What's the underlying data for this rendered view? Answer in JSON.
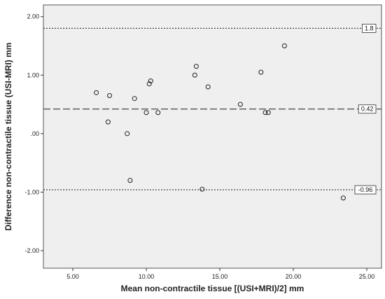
{
  "chart_data": {
    "type": "scatter",
    "xlabel": "Mean non-contractile tissue [(USI+MRI)/2] mm",
    "ylabel": "Difference non-contractile tissue (USI-MRI) mm",
    "xlim": [
      3.0,
      26.0
    ],
    "ylim": [
      -2.3,
      2.2
    ],
    "x_ticks": [
      "5.00",
      "10.00",
      "15.00",
      "20.00",
      "25.00"
    ],
    "x_tick_values": [
      5,
      10,
      15,
      20,
      25
    ],
    "y_ticks": [
      "2.00",
      "1.00",
      ".00",
      "-1.00",
      "-2.00"
    ],
    "y_tick_values": [
      2,
      1,
      0,
      -1,
      -2
    ],
    "grid": false,
    "plot_background": "#efefef",
    "marker_color": "#222222",
    "reference_lines": [
      {
        "name": "upper-limit",
        "value": 1.8,
        "label": "1.8",
        "style": "dotted"
      },
      {
        "name": "mean-difference",
        "value": 0.42,
        "label": "0.42",
        "style": "dashed"
      },
      {
        "name": "lower-limit",
        "value": -0.96,
        "label": "-0.96",
        "style": "dotted"
      }
    ],
    "points": [
      {
        "x": 6.6,
        "y": 0.7
      },
      {
        "x": 7.4,
        "y": 0.2
      },
      {
        "x": 7.5,
        "y": 0.65
      },
      {
        "x": 8.7,
        "y": 0.0
      },
      {
        "x": 8.9,
        "y": -0.8
      },
      {
        "x": 9.2,
        "y": 0.6
      },
      {
        "x": 10.0,
        "y": 0.36
      },
      {
        "x": 10.2,
        "y": 0.85
      },
      {
        "x": 10.3,
        "y": 0.9
      },
      {
        "x": 10.8,
        "y": 0.36
      },
      {
        "x": 13.3,
        "y": 1.0
      },
      {
        "x": 13.4,
        "y": 1.15
      },
      {
        "x": 13.8,
        "y": -0.95
      },
      {
        "x": 14.2,
        "y": 0.8
      },
      {
        "x": 16.4,
        "y": 0.5
      },
      {
        "x": 17.8,
        "y": 1.05
      },
      {
        "x": 18.1,
        "y": 0.36
      },
      {
        "x": 18.3,
        "y": 0.36
      },
      {
        "x": 19.4,
        "y": 1.5
      },
      {
        "x": 23.4,
        "y": -1.1
      }
    ]
  }
}
